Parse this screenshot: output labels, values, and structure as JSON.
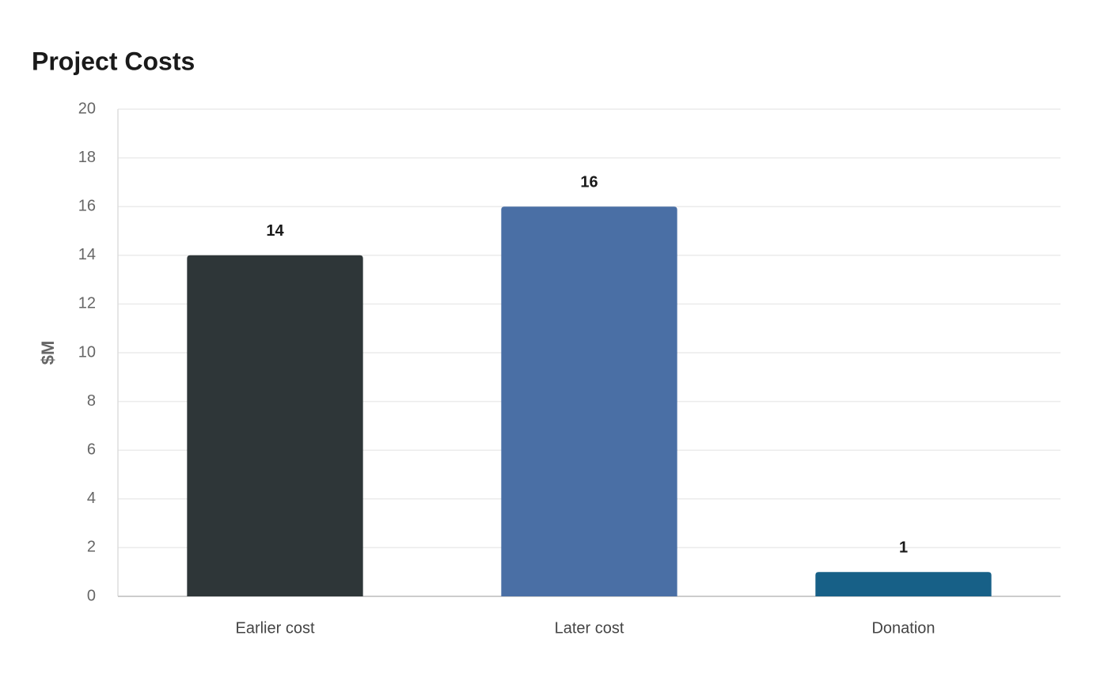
{
  "chart_data": {
    "type": "bar",
    "title": "Project Costs",
    "y_label": "$M",
    "categories": [
      "Earlier cost",
      "Later cost",
      "Donation"
    ],
    "values": [
      14,
      16,
      1
    ],
    "colors": [
      "#2e3638",
      "#4a6fa5",
      "#176087"
    ],
    "ylim": [
      0,
      20
    ],
    "yticks": [
      0,
      2,
      4,
      6,
      8,
      10,
      12,
      14,
      16,
      18,
      20
    ],
    "grid": true
  }
}
